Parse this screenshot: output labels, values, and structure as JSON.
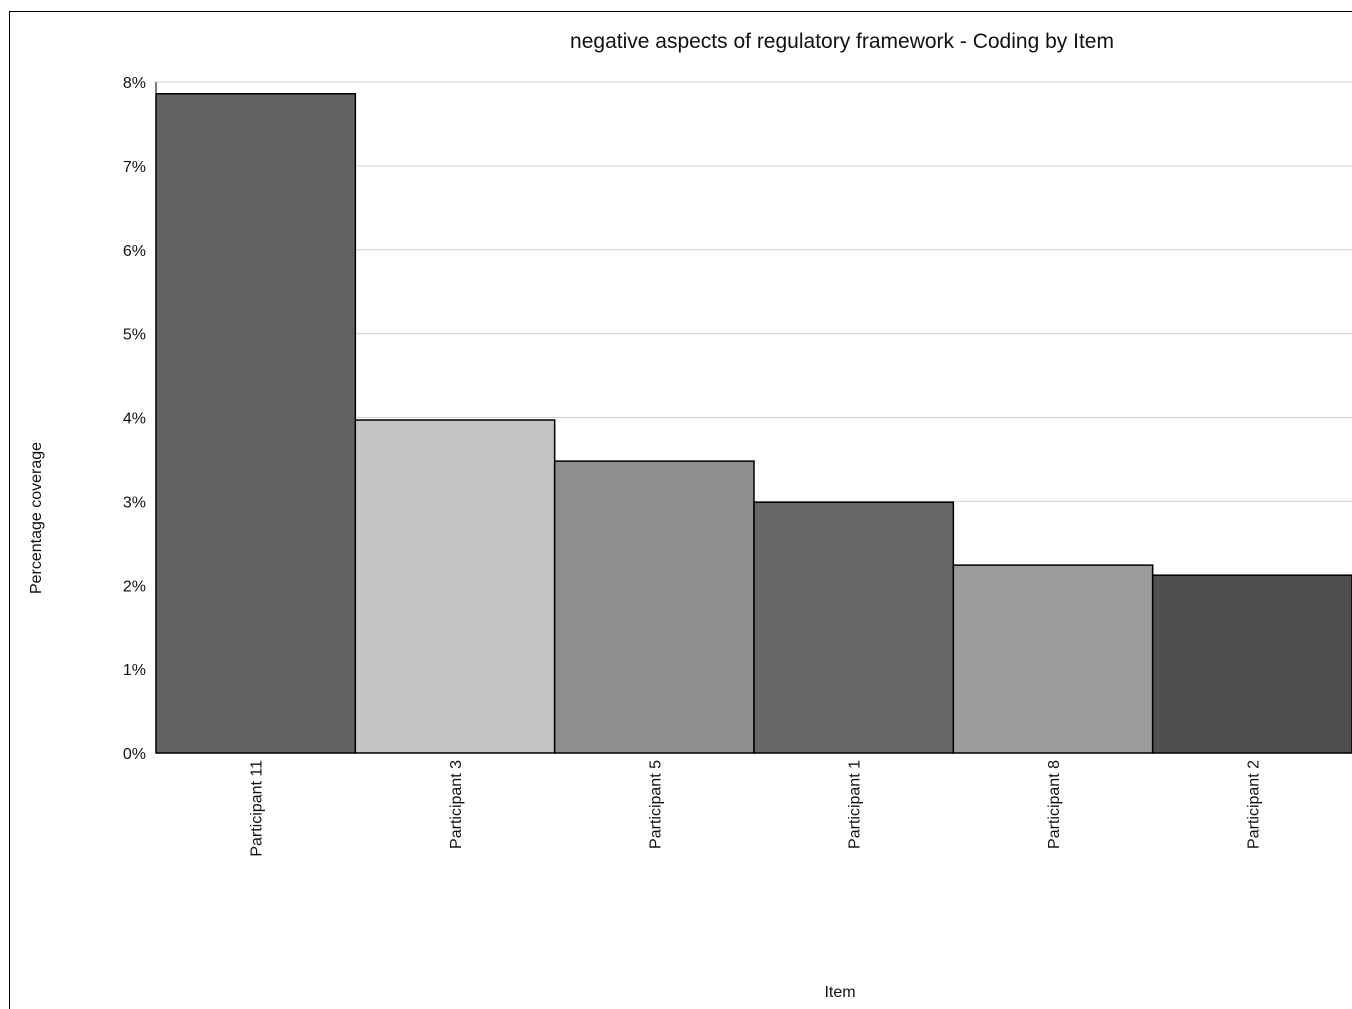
{
  "chart_data": {
    "type": "bar",
    "title": "negative aspects of regulatory framework - Coding by Item",
    "xlabel": "Item",
    "ylabel": "Percentage coverage",
    "categories": [
      "Participant 11",
      "Participant 3",
      "Participant 5",
      "Participant 1",
      "Participant 8",
      "Participant 2"
    ],
    "values": [
      7.86,
      3.97,
      3.48,
      2.99,
      2.24,
      2.12
    ],
    "ylim": [
      0,
      8
    ],
    "yticks": [
      "0%",
      "1%",
      "2%",
      "3%",
      "4%",
      "5%",
      "6%",
      "7%",
      "8%"
    ],
    "grid": true,
    "bar_colors": [
      "#636363",
      "#c4c4c4",
      "#8e8e8e",
      "#676767",
      "#9c9c9c",
      "#4f4f4f"
    ]
  }
}
